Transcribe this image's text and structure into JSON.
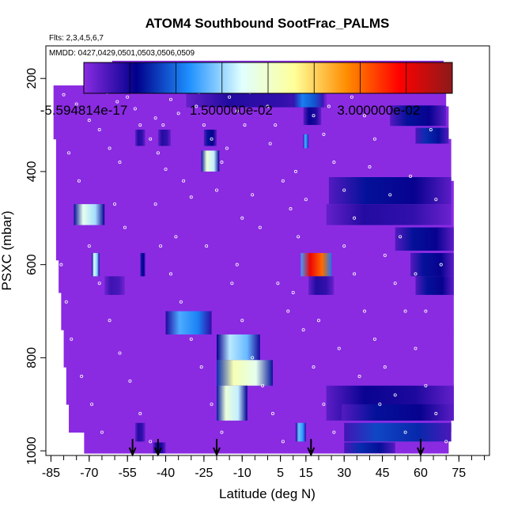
{
  "chart_data": {
    "type": "heatmap",
    "title": "ATOM4 Southbound SootFrac_PALMS",
    "notes": {
      "flights": "Flts: 2,3,4,5,6,7",
      "dates": "MMDD: 0427,0429,0501,0503,0506,0509"
    },
    "xlabel": "Latitude (deg N)",
    "ylabel": "PSXC (mbar)",
    "xlim": [
      -87,
      87
    ],
    "ylim": [
      1010,
      130
    ],
    "x_ticks": [
      -85,
      -70,
      -55,
      -40,
      -25,
      -10,
      5,
      15,
      30,
      45,
      60,
      75
    ],
    "y_ticks": [
      200,
      400,
      600,
      800,
      1000
    ],
    "colorbar": {
      "range": [
        -5.594814e-17,
        0.0375
      ],
      "tick_values": [
        -5.594814e-17,
        0.015,
        0.03
      ],
      "tick_labels": [
        "-5.594814e-17",
        "1.500000e-02",
        "3.000000e-02"
      ],
      "colors": [
        "#8a2be2",
        "#00008b",
        "#1e90ff",
        "#e0ffff",
        "#ffff99",
        "#ff8c00",
        "#ff0000",
        "#8b1a1a"
      ]
    },
    "background_value": 0.0,
    "domain_rows": [
      {
        "p_top": 162,
        "p_bot": 215,
        "lat_min": -61,
        "lat_max": 69
      },
      {
        "p_top": 215,
        "p_bot": 260,
        "lat_min": -84,
        "lat_max": 70
      },
      {
        "p_top": 260,
        "p_bot": 330,
        "lat_min": -84,
        "lat_max": 71
      },
      {
        "p_top": 330,
        "p_bot": 420,
        "lat_min": -83,
        "lat_max": 72
      },
      {
        "p_top": 420,
        "p_bot": 520,
        "lat_min": -83,
        "lat_max": 73
      },
      {
        "p_top": 520,
        "p_bot": 590,
        "lat_min": -83,
        "lat_max": 73
      },
      {
        "p_top": 590,
        "p_bot": 660,
        "lat_min": -82,
        "lat_max": 73
      },
      {
        "p_top": 660,
        "p_bot": 740,
        "lat_min": -81,
        "lat_max": 73
      },
      {
        "p_top": 740,
        "p_bot": 820,
        "lat_min": -80,
        "lat_max": 73
      },
      {
        "p_top": 820,
        "p_bot": 900,
        "lat_min": -79,
        "lat_max": 73
      },
      {
        "p_top": 900,
        "p_bot": 960,
        "lat_min": -78,
        "lat_max": 72
      },
      {
        "p_top": 960,
        "p_bot": 1005,
        "lat_min": -72,
        "lat_max": 71
      }
    ],
    "cells": [
      {
        "lat_min": -32,
        "lat_max": 23,
        "p_top": 225,
        "p_bot": 262,
        "value": 0.004
      },
      {
        "lat_min": 10,
        "lat_max": 22,
        "p_top": 225,
        "p_bot": 262,
        "value": 0.01
      },
      {
        "lat_min": 14,
        "lat_max": 21,
        "p_top": 262,
        "p_bot": 300,
        "value": 0.005
      },
      {
        "lat_min": 48,
        "lat_max": 70,
        "p_top": 258,
        "p_bot": 302,
        "value": 0.006
      },
      {
        "lat_min": 58,
        "lat_max": 71,
        "p_top": 306,
        "p_bot": 340,
        "value": 0.007
      },
      {
        "lat_min": -52,
        "lat_max": -48,
        "p_top": 310,
        "p_bot": 345,
        "value": 0.004
      },
      {
        "lat_min": -43,
        "lat_max": -38,
        "p_top": 310,
        "p_bot": 345,
        "value": 0.004
      },
      {
        "lat_min": -25,
        "lat_max": -20,
        "p_top": 310,
        "p_bot": 345,
        "value": 0.006
      },
      {
        "lat_min": 14,
        "lat_max": 16,
        "p_top": 320,
        "p_bot": 350,
        "value": 0.012
      },
      {
        "lat_min": -26,
        "lat_max": -19,
        "p_top": 355,
        "p_bot": 400,
        "value": 0.018
      },
      {
        "lat_min": 24,
        "lat_max": 72,
        "p_top": 412,
        "p_bot": 470,
        "value": 0.006
      },
      {
        "lat_min": 23,
        "lat_max": 72,
        "p_top": 470,
        "p_bot": 515,
        "value": 0.004
      },
      {
        "lat_min": -76,
        "lat_max": -64,
        "p_top": 470,
        "p_bot": 515,
        "value": 0.017
      },
      {
        "lat_min": 50,
        "lat_max": 73,
        "p_top": 520,
        "p_bot": 570,
        "value": 0.006
      },
      {
        "lat_min": 13,
        "lat_max": 25,
        "p_top": 575,
        "p_bot": 625,
        "value": 0.033
      },
      {
        "lat_min": 56,
        "lat_max": 73,
        "p_top": 575,
        "p_bot": 625,
        "value": 0.006
      },
      {
        "lat_min": -69,
        "lat_max": -66,
        "p_top": 575,
        "p_bot": 625,
        "value": 0.016
      },
      {
        "lat_min": -50,
        "lat_max": -48,
        "p_top": 575,
        "p_bot": 625,
        "value": 0.006
      },
      {
        "lat_min": 16,
        "lat_max": 26,
        "p_top": 625,
        "p_bot": 665,
        "value": 0.004
      },
      {
        "lat_min": 58,
        "lat_max": 73,
        "p_top": 625,
        "p_bot": 665,
        "value": 0.006
      },
      {
        "lat_min": -64,
        "lat_max": -56,
        "p_top": 625,
        "p_bot": 665,
        "value": 0.003
      },
      {
        "lat_min": -40,
        "lat_max": -22,
        "p_top": 700,
        "p_bot": 750,
        "value": 0.012
      },
      {
        "lat_min": -20,
        "lat_max": -3,
        "p_top": 750,
        "p_bot": 805,
        "value": 0.015
      },
      {
        "lat_min": -20,
        "lat_max": 2,
        "p_top": 805,
        "p_bot": 860,
        "value": 0.02
      },
      {
        "lat_min": -20,
        "lat_max": -8,
        "p_top": 860,
        "p_bot": 935,
        "value": 0.018
      },
      {
        "lat_min": 23,
        "lat_max": 73,
        "p_top": 860,
        "p_bot": 935,
        "value": 0.005
      },
      {
        "lat_min": 29,
        "lat_max": 73,
        "p_top": 900,
        "p_bot": 935,
        "value": 0.006
      },
      {
        "lat_min": 30,
        "lat_max": 72,
        "p_top": 940,
        "p_bot": 980,
        "value": 0.008
      },
      {
        "lat_min": 11,
        "lat_max": 15,
        "p_top": 940,
        "p_bot": 980,
        "value": 0.013
      },
      {
        "lat_min": -52,
        "lat_max": -48,
        "p_top": 940,
        "p_bot": 980,
        "value": 0.004
      },
      {
        "lat_min": 30,
        "lat_max": 50,
        "p_top": 982,
        "p_bot": 1005,
        "value": 0.007
      },
      {
        "lat_min": -45,
        "lat_max": -40,
        "p_top": 982,
        "p_bot": 1005,
        "value": 0.005
      }
    ],
    "sample_points": [
      [
        -80,
        235
      ],
      [
        -75,
        255
      ],
      [
        -70,
        290
      ],
      [
        -66,
        310
      ],
      [
        -62,
        350
      ],
      [
        -58,
        380
      ],
      [
        -55,
        240
      ],
      [
        -52,
        265
      ],
      [
        -50,
        300
      ],
      [
        -46,
        330
      ],
      [
        -43,
        360
      ],
      [
        -40,
        395
      ],
      [
        -38,
        245
      ],
      [
        -35,
        275
      ],
      [
        -33,
        420
      ],
      [
        -30,
        455
      ],
      [
        -28,
        260
      ],
      [
        -25,
        300
      ],
      [
        -22,
        330
      ],
      [
        -18,
        380
      ],
      [
        -15,
        240
      ],
      [
        -12,
        270
      ],
      [
        -9,
        300
      ],
      [
        -6,
        450
      ],
      [
        -3,
        520
      ],
      [
        0,
        260
      ],
      [
        3,
        300
      ],
      [
        6,
        420
      ],
      [
        9,
        480
      ],
      [
        12,
        540
      ],
      [
        18,
        280
      ],
      [
        22,
        320
      ],
      [
        26,
        380
      ],
      [
        30,
        440
      ],
      [
        34,
        500
      ],
      [
        38,
        280
      ],
      [
        42,
        330
      ],
      [
        46,
        580
      ],
      [
        50,
        640
      ],
      [
        54,
        700
      ],
      [
        58,
        780
      ],
      [
        62,
        860
      ],
      [
        66,
        920
      ],
      [
        70,
        980
      ],
      [
        -78,
        360
      ],
      [
        -74,
        420
      ],
      [
        -70,
        560
      ],
      [
        -66,
        640
      ],
      [
        -62,
        720
      ],
      [
        -58,
        790
      ],
      [
        -54,
        850
      ],
      [
        -50,
        920
      ],
      [
        -46,
        980
      ],
      [
        -42,
        560
      ],
      [
        -38,
        620
      ],
      [
        -34,
        680
      ],
      [
        -30,
        760
      ],
      [
        -26,
        820
      ],
      [
        -22,
        900
      ],
      [
        -18,
        960
      ],
      [
        -14,
        640
      ],
      [
        -10,
        720
      ],
      [
        -6,
        800
      ],
      [
        -2,
        860
      ],
      [
        2,
        920
      ],
      [
        6,
        980
      ],
      [
        10,
        660
      ],
      [
        14,
        740
      ],
      [
        18,
        820
      ],
      [
        22,
        900
      ],
      [
        26,
        960
      ],
      [
        30,
        560
      ],
      [
        34,
        620
      ],
      [
        38,
        700
      ],
      [
        42,
        760
      ],
      [
        46,
        820
      ],
      [
        50,
        880
      ],
      [
        54,
        960
      ],
      [
        58,
        620
      ],
      [
        62,
        700
      ],
      [
        -81,
        600
      ],
      [
        -79,
        680
      ],
      [
        -77,
        760
      ],
      [
        -73,
        840
      ],
      [
        -69,
        900
      ],
      [
        -65,
        960
      ],
      [
        -60,
        470
      ],
      [
        -56,
        520
      ],
      [
        -44,
        470
      ],
      [
        -36,
        540
      ],
      [
        -24,
        560
      ],
      [
        -12,
        600
      ],
      [
        4,
        640
      ],
      [
        8,
        700
      ],
      [
        20,
        720
      ],
      [
        28,
        780
      ],
      [
        36,
        840
      ],
      [
        44,
        900
      ],
      [
        52,
        540
      ],
      [
        66,
        460
      ],
      [
        -63,
        230
      ],
      [
        -59,
        250
      ],
      [
        -48,
        220
      ],
      [
        -44,
        285
      ],
      [
        -41,
        300
      ],
      [
        -27,
        230
      ],
      [
        -16,
        350
      ],
      [
        -7,
        230
      ],
      [
        1,
        340
      ],
      [
        11,
        400
      ],
      [
        24,
        260
      ],
      [
        33,
        240
      ],
      [
        40,
        390
      ],
      [
        48,
        450
      ],
      [
        56,
        410
      ],
      [
        64,
        310
      ],
      [
        68,
        600
      ],
      [
        -20,
        440
      ],
      [
        -10,
        500
      ],
      [
        15,
        460
      ]
    ],
    "markers_lat": [
      -53,
      -43,
      -20,
      17,
      60
    ]
  }
}
